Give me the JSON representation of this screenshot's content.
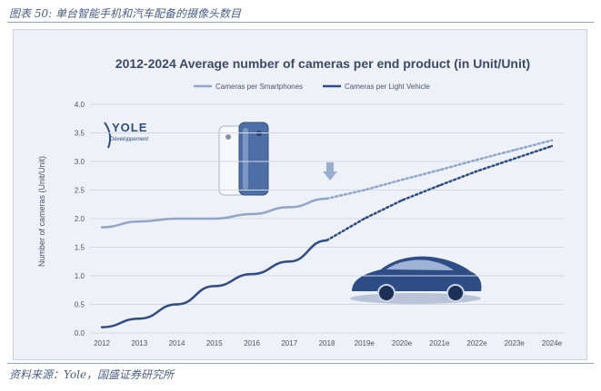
{
  "figure": {
    "caption": "图表 50: 单台智能手机和汽车配备的摄像头数目",
    "source": "资料来源：Yole，国盛证券研究所"
  },
  "logo": {
    "name": "YOLE",
    "subtitle": "Développement"
  },
  "colors": {
    "smartphones": "#8fa6c9",
    "vehicle": "#2e4c86",
    "grid": "#d3d9e4",
    "text": "#4a5568"
  },
  "chart_data": {
    "type": "line",
    "title": "2012-2024 Average number of cameras per end product (in Unit/Unit)",
    "ylabel": "Number of cameras (Unit/Unit)",
    "xlabel": "",
    "categories": [
      "2012",
      "2013",
      "2014",
      "2015",
      "2016",
      "2017",
      "2018",
      "2019e",
      "2020e",
      "2021e",
      "2022e",
      "2023e",
      "2024e"
    ],
    "ylim": [
      0,
      4
    ],
    "yticks": [
      "0.0",
      "0.5",
      "1.0",
      "1.5",
      "2.0",
      "2.5",
      "3.0",
      "3.5",
      "4.0"
    ],
    "grid": true,
    "legend_position": "top-left",
    "forecast_start_index": 6,
    "series": [
      {
        "name": "Cameras per Smartphones",
        "values": [
          1.85,
          1.95,
          2.0,
          2.0,
          2.08,
          2.2,
          2.35,
          2.5,
          2.68,
          2.85,
          3.03,
          3.2,
          3.37
        ]
      },
      {
        "name": "Cameras per Light Vehicle",
        "values": [
          0.1,
          0.25,
          0.5,
          0.82,
          1.03,
          1.25,
          1.62,
          2.0,
          2.32,
          2.58,
          2.83,
          3.05,
          3.27
        ]
      }
    ]
  }
}
